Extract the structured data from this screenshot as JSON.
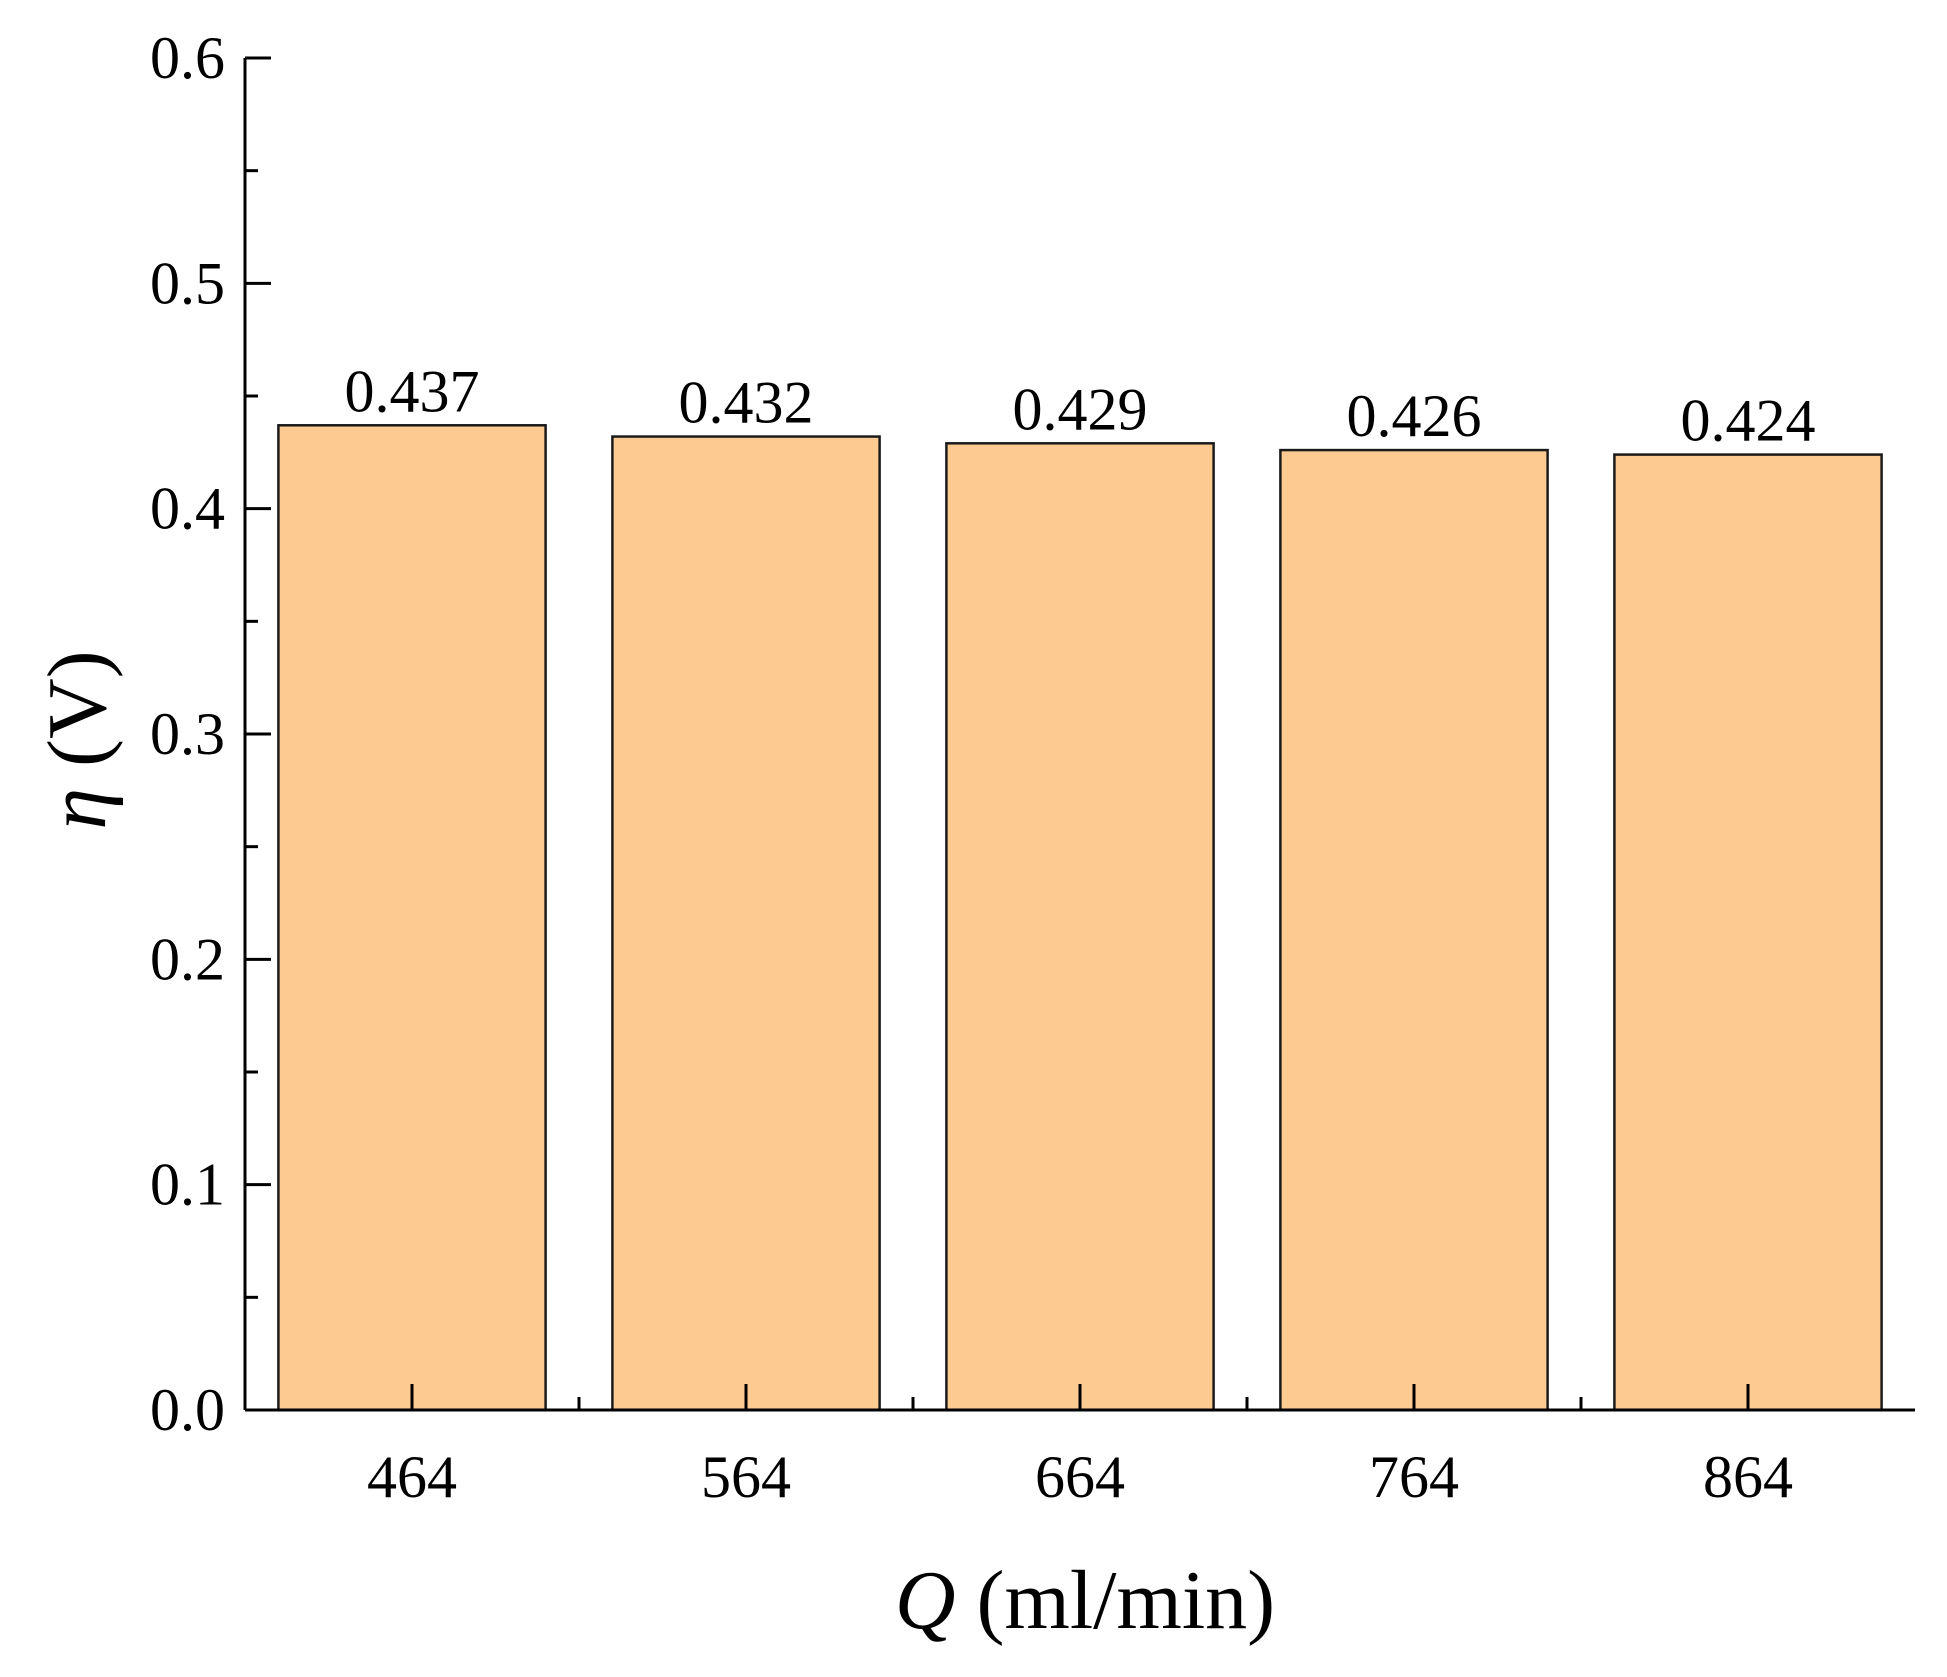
{
  "chart_data": {
    "type": "bar",
    "categories": [
      "464",
      "564",
      "664",
      "764",
      "864"
    ],
    "values": [
      0.437,
      0.432,
      0.429,
      0.426,
      0.424
    ],
    "value_labels": [
      "0.437",
      "0.432",
      "0.429",
      "0.426",
      "0.424"
    ],
    "title": "",
    "xlabel": {
      "symbol": "Q",
      "unit": " (ml/min)"
    },
    "ylabel": {
      "symbol": "η",
      "unit": " (V)"
    },
    "ylim": [
      0,
      0.6
    ],
    "yticks": [
      "0.0",
      "0.1",
      "0.2",
      "0.3",
      "0.4",
      "0.5",
      "0.6"
    ],
    "grid": false,
    "legend": "none",
    "bar_color": "#fdca92",
    "edge_color": "#1a1a1a"
  }
}
